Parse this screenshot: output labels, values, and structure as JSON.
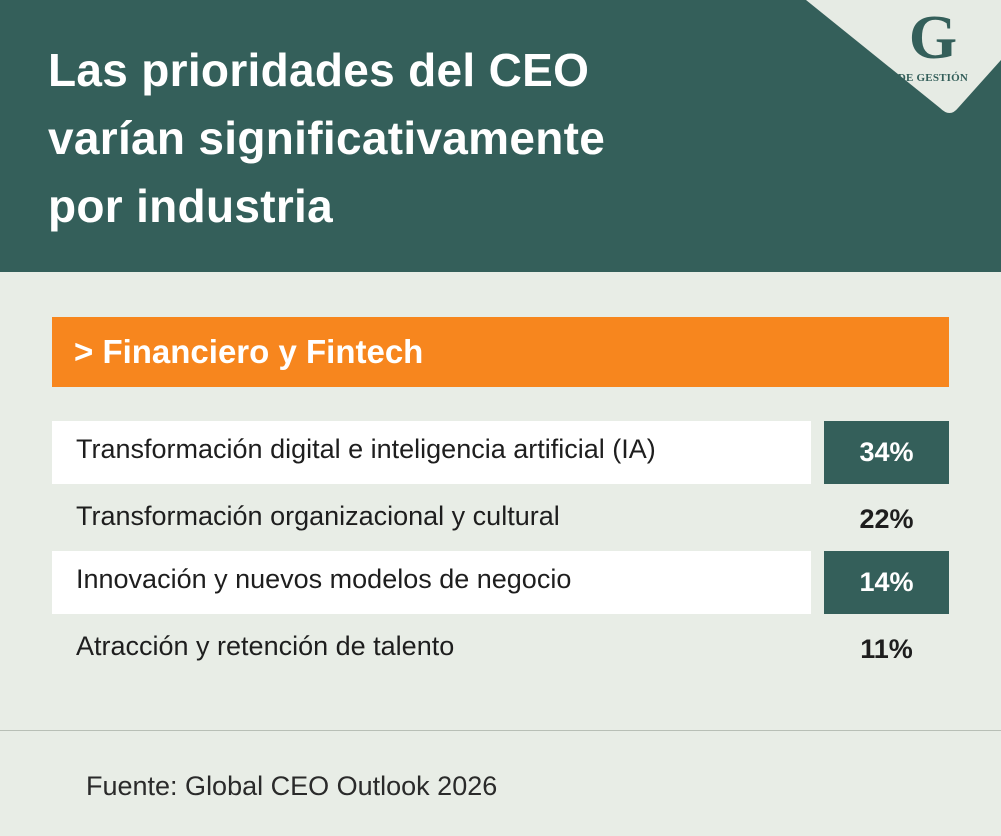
{
  "header": {
    "title_lines": [
      "Las prioridades del CEO",
      "varían significativamente",
      "por industria"
    ],
    "logo": {
      "letter": "G",
      "subtitle": "DE GESTIÓN"
    }
  },
  "category": {
    "label": "> Financiero y Fintech"
  },
  "rows": [
    {
      "label": "Transformación digital e inteligencia artificial (IA)",
      "value": "34%"
    },
    {
      "label": "Transformación organizacional y cultural",
      "value": "22%"
    },
    {
      "label": "Innovación y nuevos modelos de negocio",
      "value": "14%"
    },
    {
      "label": "Atracción y retención de talento",
      "value": "11%"
    }
  ],
  "source": "Fuente: Global CEO Outlook 2026",
  "colors": {
    "header_bg": "#345f5a",
    "accent_orange": "#f7861e",
    "page_bg": "#e8ede6",
    "row_highlight": "#ffffff",
    "value_highlight": "#345f5a"
  }
}
